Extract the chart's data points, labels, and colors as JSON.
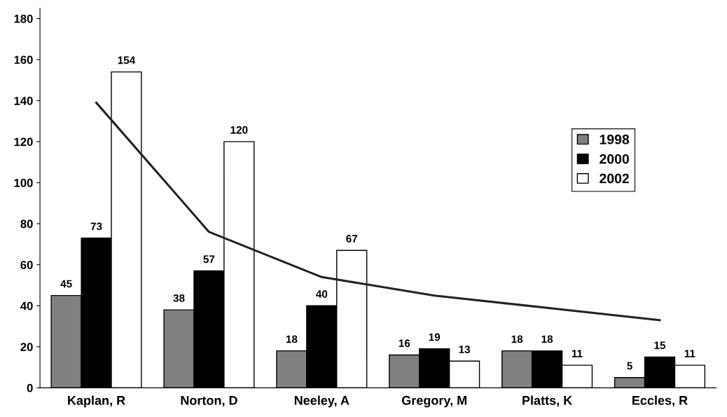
{
  "chart_data": {
    "type": "bar",
    "categories": [
      "Kaplan, R",
      "Norton, D",
      "Neeley, A",
      "Gregory, M",
      "Platts, K",
      "Eccles, R"
    ],
    "series": [
      {
        "name": "1998",
        "color": "#808080",
        "values": [
          45,
          38,
          18,
          16,
          18,
          5
        ],
        "value_labels": [
          "45",
          "38",
          "18",
          "16",
          "18",
          "5"
        ]
      },
      {
        "name": "2000",
        "color": "#000000",
        "values": [
          73,
          57,
          40,
          19,
          18,
          15
        ],
        "value_labels": [
          "73",
          "57",
          "40",
          "19",
          "18",
          "15"
        ]
      },
      {
        "name": "2002",
        "color": "#ffffff",
        "values": [
          154,
          120,
          67,
          13,
          11,
          11
        ],
        "value_labels": [
          "154",
          "120",
          "67",
          "13",
          "11",
          "11"
        ]
      },
      {
        "type": "line",
        "color": "#222222",
        "values": [
          139,
          76,
          54,
          45,
          39,
          33
        ]
      }
    ],
    "ylim": [
      0,
      185
    ],
    "yticks": [
      0,
      20,
      40,
      60,
      80,
      100,
      120,
      140,
      160,
      180
    ],
    "grid": false,
    "legend": "right",
    "marker": "none",
    "line_style": "solid"
  }
}
